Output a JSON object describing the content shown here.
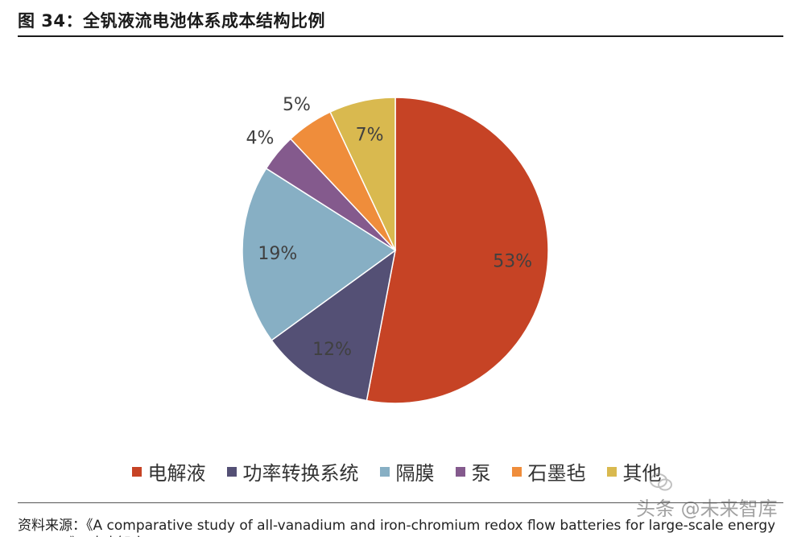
{
  "title": "图 34：全钒液流电池体系成本结构比例",
  "chart_data": {
    "type": "pie",
    "categories": [
      "电解液",
      "功率转换系统",
      "隔膜",
      "泵",
      "石墨毡",
      "其他"
    ],
    "values": [
      53,
      12,
      19,
      4,
      5,
      7
    ],
    "labels": [
      "53%",
      "12%",
      "19%",
      "4%",
      "5%",
      "7%"
    ],
    "colors": [
      "#c64325",
      "#545075",
      "#87afc4",
      "#845a8d",
      "#ef8d3b",
      "#d9b94f"
    ],
    "legend_position": "bottom"
  },
  "source": "资料来源：《A comparative study of all-vanadium and iron-chromium redox flow batteries for large-scale energy",
  "source_cont": "storage》，未来智库",
  "watermark": "头条 @未来智库"
}
